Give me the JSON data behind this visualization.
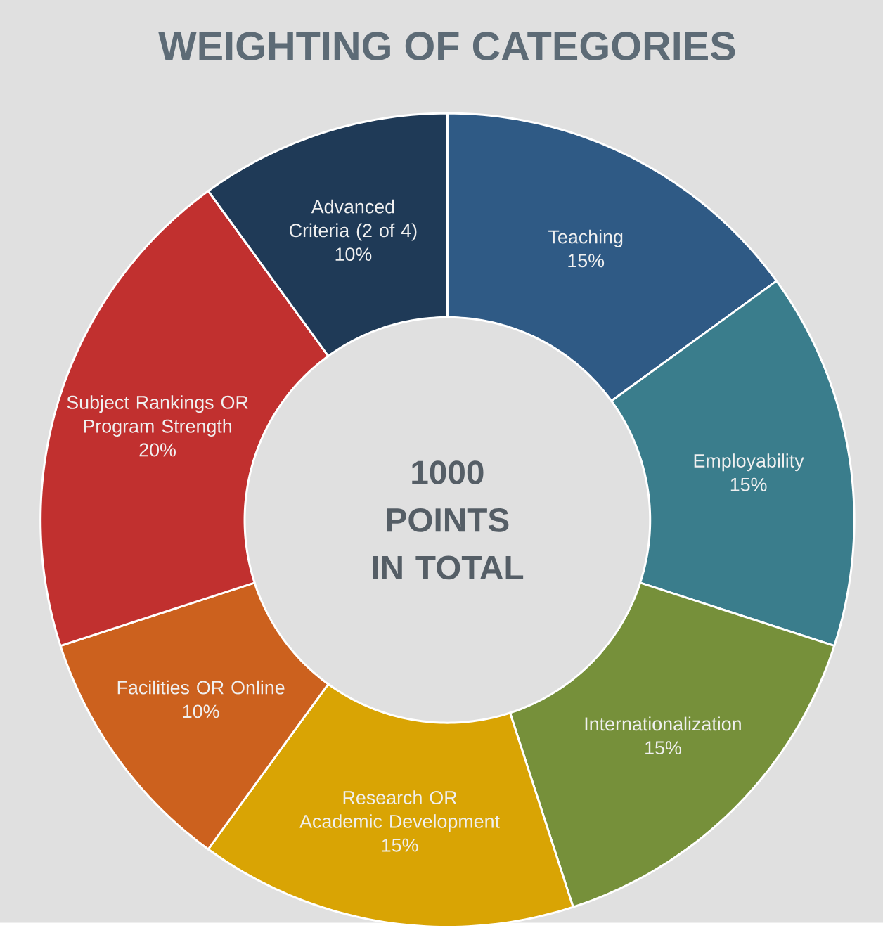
{
  "chart_data": {
    "type": "donut",
    "title": "WEIGHTING OF CATEGORIES",
    "categories": [
      "Teaching",
      "Employability",
      "Internationalization",
      "Research OR Academic Development",
      "Facilities OR Online",
      "Subject Rankings OR Program Strength",
      "Advanced Criteria (2 of 4)"
    ],
    "values": [
      15,
      15,
      15,
      15,
      10,
      20,
      10
    ],
    "value_labels": [
      "15%",
      "15%",
      "15%",
      "15%",
      "10%",
      "20%",
      "10%"
    ],
    "colors": [
      "#2f5a85",
      "#3a7d8c",
      "#76903a",
      "#d9a404",
      "#cc611e",
      "#c1302f",
      "#1f3a57"
    ],
    "annotations": [
      "1000 POINTS IN TOTAL"
    ]
  }
}
